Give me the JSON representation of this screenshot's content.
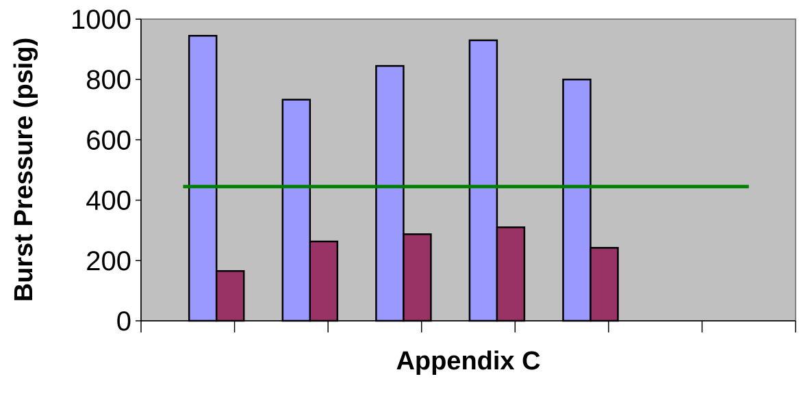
{
  "chart_data": {
    "type": "bar",
    "xlabel": "Appendix C",
    "ylabel": "Burst Pressure (psig)",
    "ylim": [
      0,
      1000
    ],
    "yticks": [
      "0",
      "200",
      "400",
      "600",
      "800",
      "1000"
    ],
    "category_count": 7,
    "series": [
      {
        "values": [
          null,
          945,
          733,
          845,
          930,
          800,
          null
        ]
      },
      {
        "values": [
          null,
          165,
          263,
          287,
          310,
          242,
          null
        ]
      }
    ],
    "reference_line": {
      "type": "line",
      "y": 445,
      "x_from": 0.45,
      "x_to": 6.5
    },
    "grid": false,
    "legend": "none",
    "colors": {
      "plot_background": "#c0c0c0",
      "series_1": "#9999ff",
      "series_2": "#993366",
      "reference_line": "#008000"
    }
  }
}
